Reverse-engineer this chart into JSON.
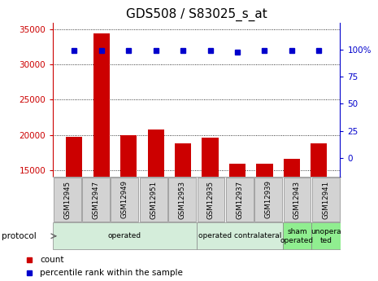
{
  "title": "GDS508 / S83025_s_at",
  "samples": [
    "GSM12945",
    "GSM12947",
    "GSM12949",
    "GSM12951",
    "GSM12953",
    "GSM12935",
    "GSM12937",
    "GSM12939",
    "GSM12943",
    "GSM12941"
  ],
  "counts": [
    19700,
    34500,
    20000,
    20800,
    18800,
    19600,
    15900,
    15900,
    16600,
    18800
  ],
  "percentile_ranks": [
    99,
    99,
    99,
    99,
    99,
    99,
    98,
    99,
    99,
    99
  ],
  "ylim_left": [
    14000,
    36000
  ],
  "yticks_left": [
    15000,
    20000,
    25000,
    30000,
    35000
  ],
  "ylim_right": [
    -17.5,
    125
  ],
  "yticks_right": [
    0,
    25,
    50,
    75,
    100
  ],
  "bar_color": "#cc0000",
  "dot_color": "#0000cc",
  "bar_width": 0.6,
  "dot_size": 5,
  "protocol_groups": [
    {
      "label": "operated",
      "start": 0,
      "end": 5,
      "color": "#d4edda"
    },
    {
      "label": "operated contralateral",
      "start": 5,
      "end": 8,
      "color": "#d4edda"
    },
    {
      "label": "sham\noperated",
      "start": 8,
      "end": 9,
      "color": "#90ee90"
    },
    {
      "label": "unopera\nted",
      "start": 9,
      "end": 10,
      "color": "#90ee90"
    }
  ],
  "protocol_label": "protocol",
  "legend_items": [
    {
      "label": "count",
      "color": "#cc0000"
    },
    {
      "label": "percentile rank within the sample",
      "color": "#0000cc"
    }
  ],
  "tick_color_left": "#cc0000",
  "tick_color_right": "#0000cc",
  "title_fontsize": 11,
  "tick_fontsize": 7.5,
  "label_fontsize": 8
}
